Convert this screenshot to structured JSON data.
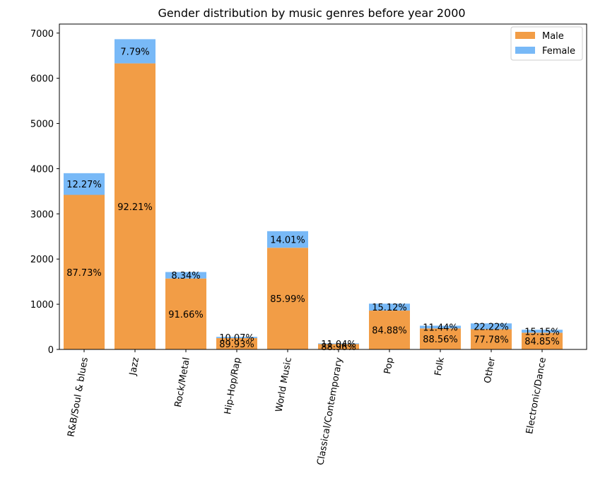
{
  "chart_data": {
    "type": "bar",
    "stacked": true,
    "title": "Gender distribution by music genres before year 2000",
    "xlabel": "",
    "ylabel": "",
    "ylim": [
      0,
      7200
    ],
    "yticks": [
      0,
      1000,
      2000,
      3000,
      4000,
      5000,
      6000,
      7000
    ],
    "grid": false,
    "legend_position": "top-right",
    "categories": [
      "R&B/Soul & blues",
      "Jazz",
      "Rock/Metal",
      "Hip-Hop/Rap",
      "World Music",
      "Classical/Contemporary",
      "Pop",
      "Folk",
      "Other",
      "Electronic/Dance"
    ],
    "series": [
      {
        "name": "Male",
        "color": "#f29d46",
        "values": [
          3420,
          6330,
          1570,
          250,
          2250,
          120,
          860,
          465,
          448,
          370
        ],
        "labels": [
          "87.73%",
          "92.21%",
          "91.66%",
          "89.93%",
          "85.99%",
          "88.96%",
          "84.88%",
          "88.56%",
          "77.78%",
          "84.85%"
        ]
      },
      {
        "name": "Female",
        "color": "#78b9f7",
        "values": [
          480,
          535,
          143,
          28,
          367,
          15,
          153,
          60,
          128,
          66
        ],
        "labels": [
          "12.27%",
          "7.79%",
          "8.34%",
          "10.07%",
          "14.01%",
          "11.04%",
          "15.12%",
          "11.44%",
          "22.22%",
          "15.15%"
        ]
      }
    ]
  }
}
